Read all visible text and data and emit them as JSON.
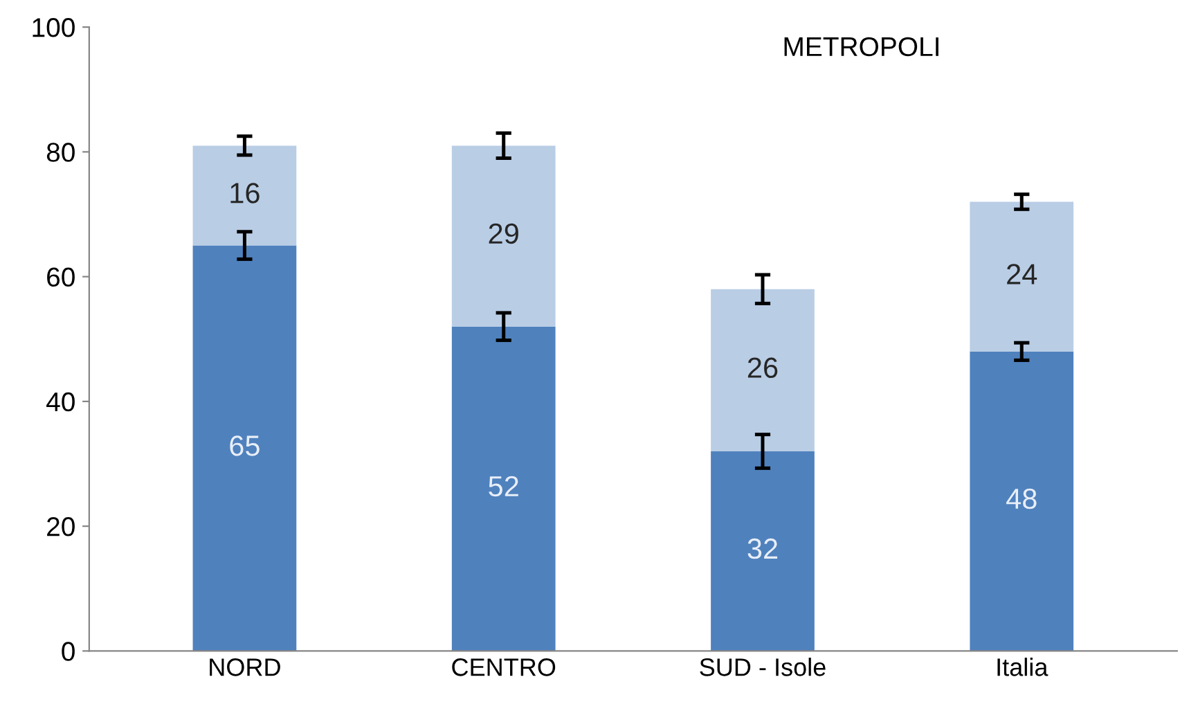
{
  "chart_data": {
    "type": "bar",
    "title": "METROPOLI",
    "categories": [
      "NORD",
      "CENTRO",
      "SUD - Isole",
      "Italia"
    ],
    "stacked": true,
    "data_labels": true,
    "ylim": [
      0,
      100
    ],
    "yticks": [
      0,
      20,
      40,
      60,
      80,
      100
    ],
    "grid": false,
    "series": [
      {
        "color": "#4f81bd",
        "values": [
          65,
          52,
          32,
          48
        ],
        "errors": [
          2.2,
          2.2,
          2.7,
          1.4
        ]
      },
      {
        "color": "#b9cde5",
        "values": [
          16,
          29,
          26,
          24
        ],
        "errors": [
          1.5,
          2,
          2.3,
          1.2
        ]
      }
    ]
  }
}
